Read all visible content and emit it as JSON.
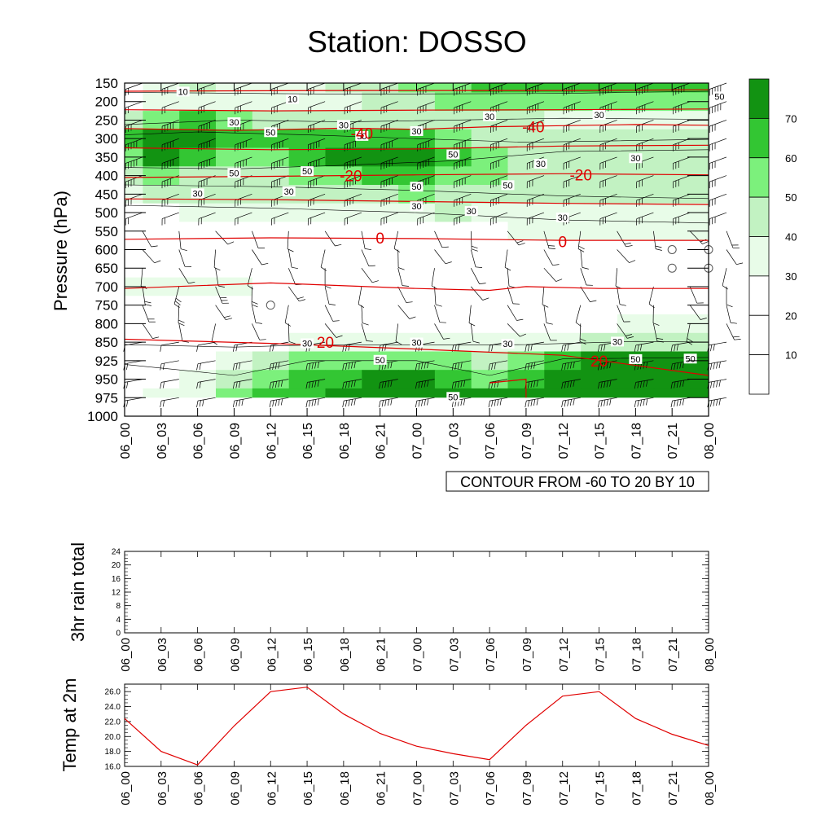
{
  "title": "Station: DOSSO",
  "time_labels": [
    "06_00",
    "06_03",
    "06_06",
    "06_09",
    "06_12",
    "06_15",
    "06_18",
    "06_21",
    "07_00",
    "07_03",
    "07_06",
    "07_09",
    "07_12",
    "07_15",
    "07_18",
    "07_21",
    "08_00"
  ],
  "colors": {
    "ramp": [
      "#ffffff",
      "#ffffff",
      "#e8fce8",
      "#c2f2c2",
      "#7cf07c",
      "#33c633",
      "#129312"
    ],
    "temp_contour": "#e00000",
    "line": "#e00000",
    "axis": "#000000"
  },
  "chart_data": [
    {
      "type": "heatmap",
      "name": "time-pressure cross section (wind speed shading, wind barbs, temperature contours)",
      "title": "Station: DOSSO",
      "ylabel": "Pressure (hPa)",
      "yticks": [
        150,
        200,
        250,
        300,
        350,
        400,
        450,
        500,
        550,
        600,
        650,
        700,
        750,
        800,
        850,
        925,
        950,
        975,
        1000
      ],
      "info_label": "CONTOUR FROM -60 TO 20 BY 10",
      "colorbar": {
        "levels": [
          10,
          20,
          30,
          40,
          50,
          60,
          70
        ],
        "labels": [
          "10",
          "20",
          "30",
          "40",
          "50",
          "60",
          "70"
        ]
      },
      "speed_grid": [
        [
          15,
          25,
          30,
          28,
          25,
          25,
          30,
          35,
          40,
          45,
          50,
          55,
          55,
          55,
          50,
          50,
          55
        ],
        [
          15,
          20,
          25,
          28,
          25,
          22,
          25,
          30,
          35,
          40,
          40,
          45,
          45,
          45,
          40,
          40,
          45
        ],
        [
          30,
          45,
          50,
          40,
          35,
          30,
          35,
          38,
          35,
          35,
          30,
          30,
          28,
          26,
          25,
          25,
          25
        ],
        [
          55,
          75,
          65,
          55,
          50,
          55,
          55,
          55,
          50,
          45,
          38,
          32,
          30,
          30,
          30,
          30,
          30
        ],
        [
          48,
          60,
          55,
          45,
          45,
          55,
          60,
          70,
          70,
          55,
          40,
          35,
          32,
          30,
          30,
          30,
          30
        ],
        [
          35,
          40,
          38,
          35,
          35,
          40,
          45,
          50,
          52,
          45,
          40,
          32,
          30,
          30,
          30,
          30,
          30
        ],
        [
          25,
          30,
          30,
          30,
          30,
          32,
          35,
          35,
          40,
          38,
          35,
          32,
          30,
          30,
          30,
          30,
          30
        ],
        [
          15,
          18,
          20,
          20,
          20,
          20,
          22,
          25,
          28,
          30,
          28,
          28,
          28,
          28,
          28,
          28,
          28
        ],
        [
          10,
          10,
          10,
          10,
          10,
          10,
          10,
          10,
          12,
          15,
          18,
          20,
          20,
          20,
          20,
          20,
          20
        ],
        [
          8,
          8,
          8,
          8,
          8,
          8,
          8,
          8,
          8,
          8,
          8,
          8,
          8,
          5,
          2,
          2,
          5
        ],
        [
          12,
          12,
          10,
          8,
          8,
          8,
          8,
          8,
          8,
          8,
          8,
          8,
          8,
          5,
          2,
          2,
          5
        ],
        [
          22,
          25,
          25,
          22,
          18,
          10,
          8,
          8,
          8,
          8,
          8,
          8,
          8,
          8,
          8,
          8,
          8
        ],
        [
          15,
          15,
          15,
          12,
          10,
          8,
          8,
          8,
          8,
          8,
          8,
          8,
          8,
          8,
          8,
          8,
          8
        ],
        [
          8,
          8,
          8,
          8,
          10,
          12,
          12,
          10,
          10,
          10,
          10,
          12,
          15,
          18,
          20,
          20,
          20
        ],
        [
          10,
          12,
          12,
          15,
          18,
          20,
          25,
          28,
          28,
          25,
          22,
          25,
          28,
          30,
          32,
          32,
          32
        ],
        [
          15,
          15,
          18,
          25,
          35,
          45,
          48,
          48,
          48,
          42,
          32,
          42,
          58,
          62,
          65,
          65,
          65
        ],
        [
          15,
          18,
          22,
          32,
          45,
          55,
          58,
          60,
          60,
          55,
          40,
          52,
          65,
          70,
          70,
          70,
          70
        ],
        [
          15,
          20,
          28,
          40,
          50,
          58,
          62,
          65,
          68,
          65,
          60,
          62,
          72,
          72,
          72,
          72,
          72
        ],
        [
          15,
          20,
          28,
          40,
          50,
          58,
          62,
          65,
          68,
          65,
          60,
          62,
          72,
          72,
          72,
          72,
          72
        ]
      ],
      "speed_labels": [
        {
          "t": 1.6,
          "p": 175,
          "v": "10"
        },
        {
          "t": 4.6,
          "p": 195,
          "v": "10"
        },
        {
          "t": 3.0,
          "p": 258,
          "v": "30"
        },
        {
          "t": 4.0,
          "p": 285,
          "v": "50"
        },
        {
          "t": 6.0,
          "p": 265,
          "v": "30"
        },
        {
          "t": 6.5,
          "p": 295,
          "v": "50"
        },
        {
          "t": 8.0,
          "p": 282,
          "v": "30"
        },
        {
          "t": 10.0,
          "p": 242,
          "v": "30"
        },
        {
          "t": 9.0,
          "p": 345,
          "v": "50"
        },
        {
          "t": 3.0,
          "p": 395,
          "v": "50"
        },
        {
          "t": 5.0,
          "p": 390,
          "v": "50"
        },
        {
          "t": 2.0,
          "p": 450,
          "v": "30"
        },
        {
          "t": 4.5,
          "p": 445,
          "v": "30"
        },
        {
          "t": 8.0,
          "p": 432,
          "v": "50"
        },
        {
          "t": 8.0,
          "p": 485,
          "v": "30"
        },
        {
          "t": 10.5,
          "p": 428,
          "v": "50"
        },
        {
          "t": 11.4,
          "p": 370,
          "v": "30"
        },
        {
          "t": 14.0,
          "p": 355,
          "v": "30"
        },
        {
          "t": 13.0,
          "p": 238,
          "v": "30"
        },
        {
          "t": 16.3,
          "p": 188,
          "v": "50"
        },
        {
          "t": 9.5,
          "p": 498,
          "v": "30"
        },
        {
          "t": 12.0,
          "p": 515,
          "v": "30"
        },
        {
          "t": 5.0,
          "p": 858,
          "v": "30"
        },
        {
          "t": 8.0,
          "p": 855,
          "v": "30"
        },
        {
          "t": 10.5,
          "p": 860,
          "v": "30"
        },
        {
          "t": 13.5,
          "p": 851,
          "v": "30"
        },
        {
          "t": 7.0,
          "p": 925,
          "v": "50"
        },
        {
          "t": 9.0,
          "p": 975,
          "v": "50"
        },
        {
          "t": 14.0,
          "p": 922,
          "v": "50"
        },
        {
          "t": 15.5,
          "p": 920,
          "v": "50"
        }
      ],
      "temp_contours": [
        {
          "level": -40,
          "points": [
            [
              0,
              273
            ],
            [
              3,
              278
            ],
            [
              6,
              272
            ],
            [
              8,
              275
            ],
            [
              10,
              268
            ],
            [
              12,
              265
            ],
            [
              14,
              262
            ],
            [
              16,
              264
            ],
            [
              16,
              264
            ]
          ]
        },
        {
          "level": -30,
          "points": [
            [
              0,
              325
            ],
            [
              4,
              330
            ],
            [
              8,
              328
            ],
            [
              12,
              320
            ],
            [
              16,
              318
            ]
          ]
        },
        {
          "level": -20,
          "points": [
            [
              0,
              405
            ],
            [
              4,
              402
            ],
            [
              8,
              398
            ],
            [
              12,
              395
            ],
            [
              16,
              398
            ]
          ]
        },
        {
          "level": -10,
          "points": [
            [
              0,
              463
            ],
            [
              4,
              465
            ],
            [
              8,
              470
            ],
            [
              12,
              475
            ],
            [
              16,
              478
            ]
          ]
        },
        {
          "level": 0,
          "points": [
            [
              0,
              572
            ],
            [
              4,
              568
            ],
            [
              8,
              570
            ],
            [
              12,
              575
            ],
            [
              16,
              575
            ]
          ]
        },
        {
          "level": 10,
          "points": [
            [
              0,
              705
            ],
            [
              4,
              690
            ],
            [
              8,
              705
            ],
            [
              10,
              710
            ],
            [
              11,
              700
            ],
            [
              13,
              705
            ],
            [
              16,
              705
            ]
          ]
        },
        {
          "level": 20,
          "points": [
            [
              0,
              842
            ],
            [
              4,
              855
            ],
            [
              8,
              878
            ],
            [
              12,
              903
            ],
            [
              16,
              945
            ]
          ]
        },
        {
          "level": -50,
          "points": [
            [
              0,
              222
            ],
            [
              4,
              225
            ],
            [
              8,
              223
            ],
            [
              12,
              222
            ],
            [
              16,
              220
            ]
          ]
        },
        {
          "level": -60,
          "points": [
            [
              0,
              172
            ],
            [
              6,
              170
            ],
            [
              12,
              170
            ],
            [
              16,
              168
            ]
          ]
        }
      ],
      "temp_labels": [
        {
          "t": 6.5,
          "p": 285,
          "v": "-40"
        },
        {
          "t": 11.2,
          "p": 268,
          "v": "-40"
        },
        {
          "t": 6.2,
          "p": 400,
          "v": "-20"
        },
        {
          "t": 12.5,
          "p": 398,
          "v": "-20"
        },
        {
          "t": 7.0,
          "p": 568,
          "v": "0"
        },
        {
          "t": 12.0,
          "p": 578,
          "v": "0"
        },
        {
          "t": 5.5,
          "p": 850,
          "v": "20"
        },
        {
          "t": 13.0,
          "p": 925,
          "v": "20"
        }
      ],
      "calm_markers": [
        {
          "t": 15,
          "p": 600
        },
        {
          "t": 16,
          "p": 600
        },
        {
          "t": 15,
          "p": 650
        },
        {
          "t": 16,
          "p": 650
        },
        {
          "t": 4,
          "p": 750
        }
      ]
    },
    {
      "type": "line",
      "name": "3hr rain total",
      "ylabel": "3hr rain total",
      "ylim": [
        0,
        24
      ],
      "yticks": [
        0,
        4,
        8,
        12,
        16,
        20,
        24
      ],
      "series": [
        {
          "name": "3hr rain total",
          "values": [
            0,
            0,
            0,
            0,
            0,
            0,
            0,
            0,
            0,
            0,
            0,
            0,
            0,
            0,
            0,
            0,
            0
          ]
        }
      ]
    },
    {
      "type": "line",
      "name": "Temp at 2m",
      "ylabel": "Temp at 2m",
      "ylim": [
        16.0,
        27.0
      ],
      "yticks": [
        "16.0",
        "18.0",
        "20.0",
        "22.0",
        "24.0",
        "26.0"
      ],
      "series": [
        {
          "name": "Temp at 2m",
          "values": [
            22.4,
            18.0,
            16.2,
            21.4,
            26.0,
            26.6,
            23.0,
            20.4,
            18.7,
            17.7,
            16.9,
            21.5,
            25.4,
            26.0,
            22.4,
            20.3,
            18.8
          ]
        }
      ]
    }
  ]
}
